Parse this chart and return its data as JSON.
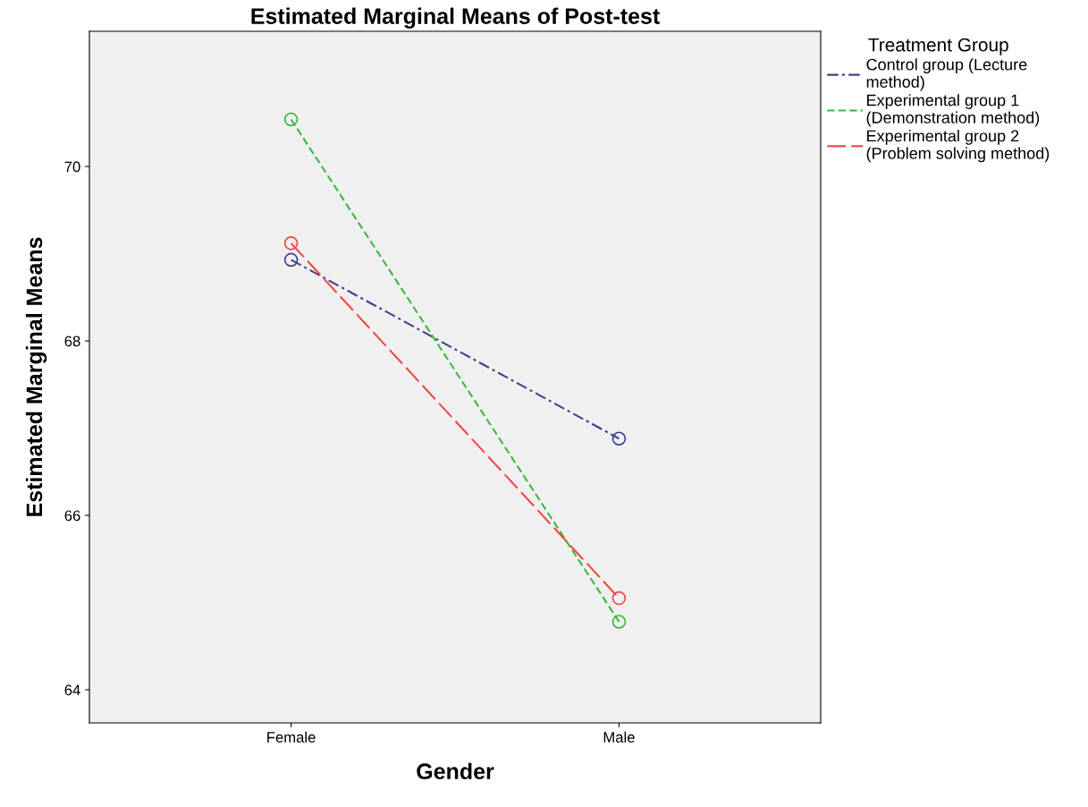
{
  "chart_data": {
    "type": "line",
    "title": "Estimated Marginal Means of Post-test",
    "xlabel": "Gender",
    "ylabel": "Estimated Marginal Means",
    "legend_title": "Treatment Group",
    "categories": [
      "Female",
      "Male"
    ],
    "series": [
      {
        "name": "Control group (Lecture\nmethod)",
        "color": "#404090",
        "values": [
          68.93,
          66.88
        ]
      },
      {
        "name": "Experimental group 1\n(Demonstration method)",
        "color": "#3cb83c",
        "values": [
          70.54,
          64.78
        ]
      },
      {
        "name": "Experimental group 2\n(Problem solving method)",
        "color": "#f04848",
        "values": [
          69.12,
          65.05
        ]
      }
    ],
    "ylim": [
      63.62,
      71.55
    ],
    "yticks": [
      64,
      66,
      68,
      70
    ],
    "grid": false,
    "legend": "right",
    "marker": "circle",
    "line_style": "dashed"
  }
}
